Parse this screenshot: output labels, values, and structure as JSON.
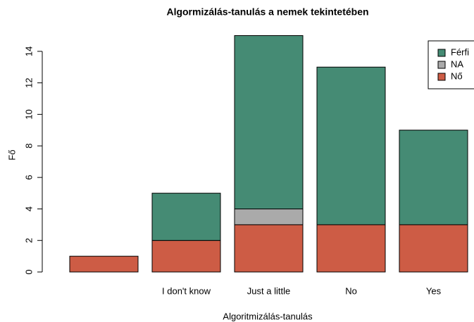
{
  "chart_data": {
    "type": "stacked_bar",
    "title": "Algormizálás-tanulás a nemek tekintetében",
    "x_label": "Algoritmizálás-tanulás",
    "y_label": "Fő",
    "categories": [
      null,
      "I don't know",
      "Just a little",
      "No",
      "Yes"
    ],
    "series": [
      {
        "name": "Nő",
        "color": "#cd5c45",
        "values": [
          1,
          2,
          3,
          3,
          3
        ]
      },
      {
        "name": "NA",
        "color": "#aaaaaa",
        "values": [
          0,
          0,
          1,
          0,
          0
        ]
      },
      {
        "name": "Férfi",
        "color": "#458b74",
        "values": [
          0,
          3,
          11,
          10,
          6
        ]
      }
    ],
    "ylim": [
      0,
      15
    ],
    "yticks": [
      0,
      2,
      4,
      6,
      8,
      10,
      12,
      14
    ],
    "legend": "top-right"
  }
}
